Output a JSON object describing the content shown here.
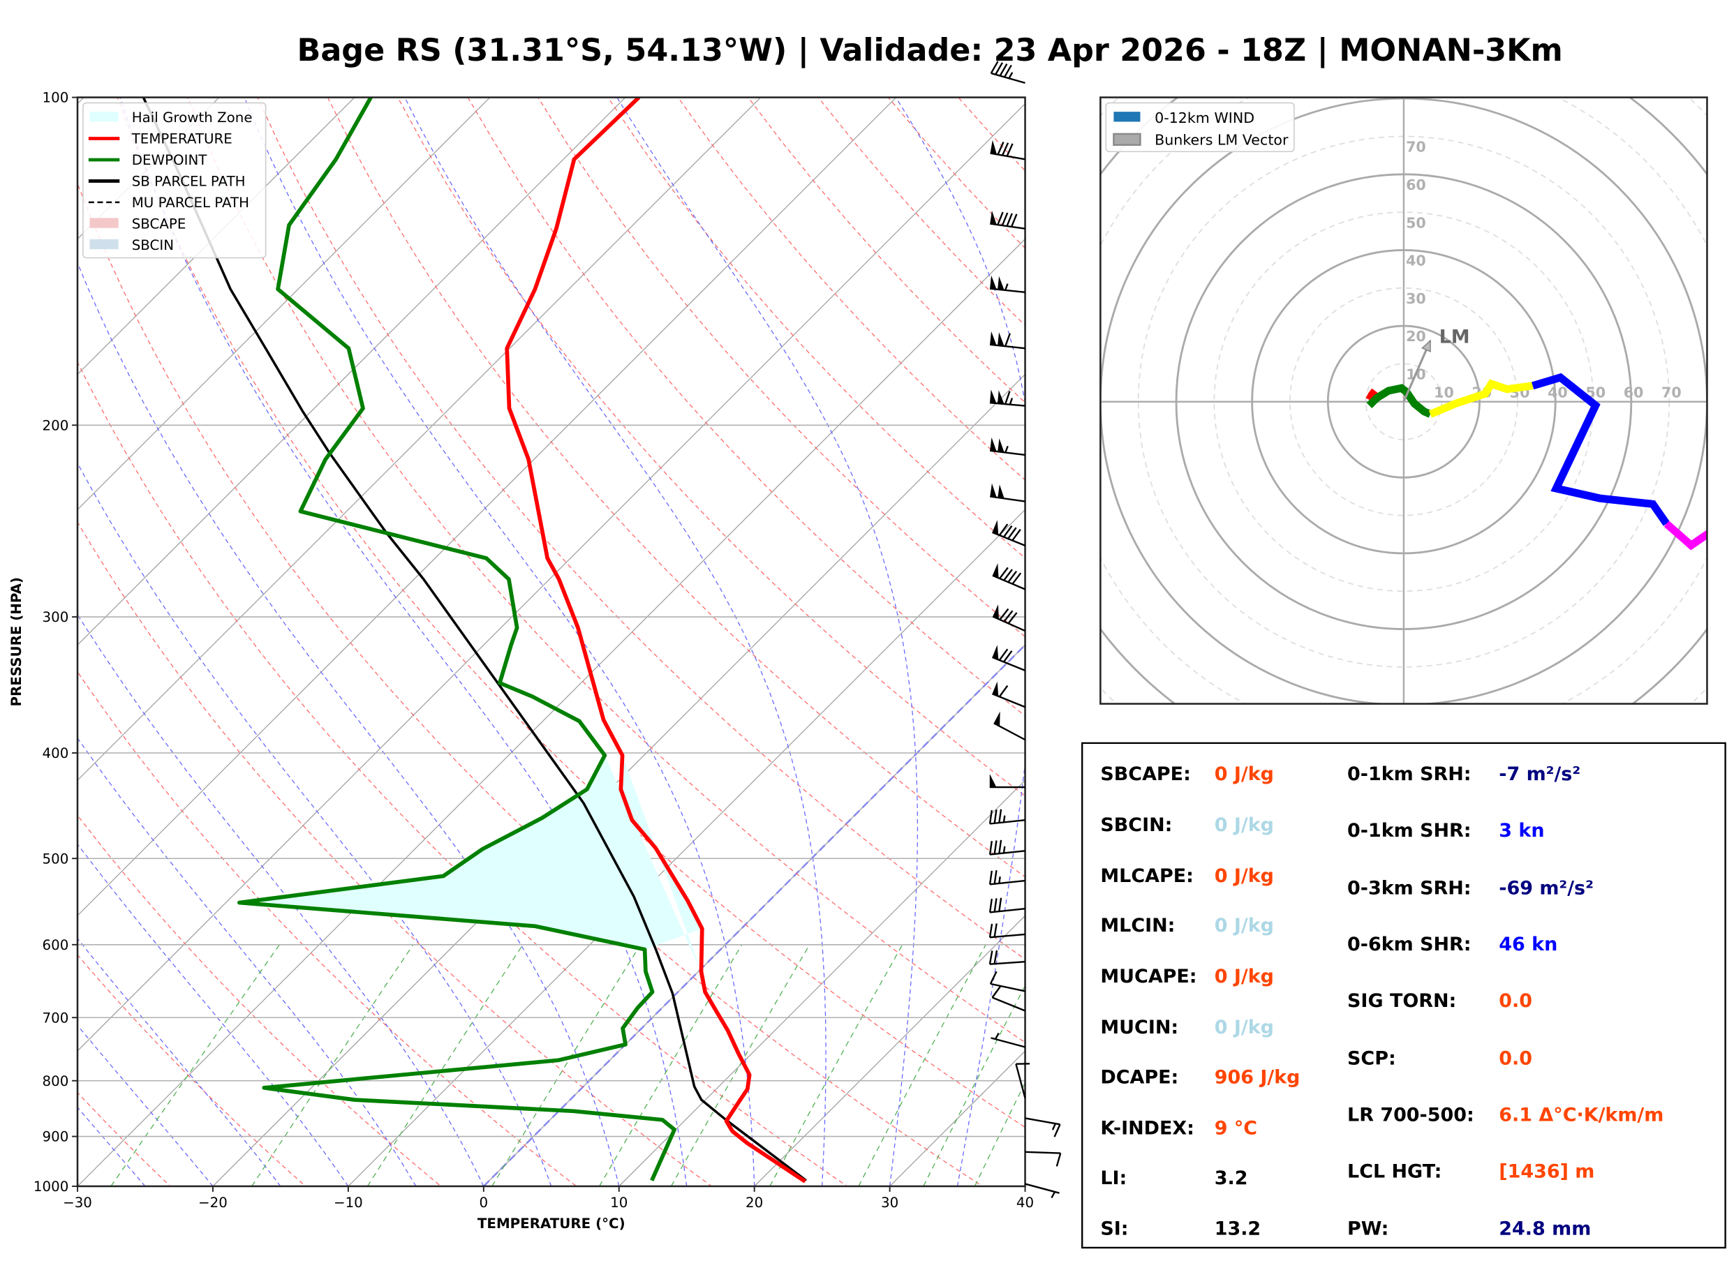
{
  "title": "Bage RS (31.31°S, 54.13°W) | Validade: 23 Apr 2026 - 18Z | MONAN-3Km",
  "colors": {
    "temperature": "#ff0000",
    "dewpoint": "#008000",
    "parcel": "#000000",
    "hail_zone": "#e0ffff",
    "dry_adiabat": "#ff6666",
    "moist_adiabat": "#6666ff",
    "mixing_ratio": "#4caf50",
    "isotherm": "#a0a0a0",
    "orange": "#ff4500",
    "lightblue": "#add8e6",
    "navy": "#000080",
    "blue": "#0000ff"
  },
  "chart_data": [
    {
      "type": "line",
      "name": "skew-t",
      "xlabel": "TEMPERATURE (°C)",
      "ylabel": "PRESSURE (HPA)",
      "xlim": [
        -30,
        40
      ],
      "ylim": [
        1000,
        100
      ],
      "yscale": "log",
      "xticks": [
        "−30",
        "−20",
        "−10",
        "0",
        "10",
        "20",
        "30",
        "40"
      ],
      "xtick_values": [
        -30,
        -20,
        -10,
        0,
        10,
        20,
        30,
        40
      ],
      "yticks": [
        "100",
        "200",
        "300",
        "400",
        "500",
        "600",
        "700",
        "800",
        "900",
        "1000"
      ],
      "ytick_values": [
        100,
        200,
        300,
        400,
        500,
        600,
        700,
        800,
        900,
        1000
      ],
      "legend": {
        "position": "top-left",
        "entries": [
          {
            "label": "Hail Growth Zone",
            "kind": "patch",
            "color": "#e0ffff"
          },
          {
            "label": "TEMPERATURE",
            "kind": "line",
            "color": "#ff0000"
          },
          {
            "label": "DEWPOINT",
            "kind": "line",
            "color": "#008000"
          },
          {
            "label": "SB PARCEL PATH",
            "kind": "line",
            "color": "#000000"
          },
          {
            "label": "MU PARCEL PATH",
            "kind": "dashed",
            "color": "#000000"
          },
          {
            "label": "SBCAPE",
            "kind": "patch",
            "color": "#f4c7c9"
          },
          {
            "label": "SBCIN",
            "kind": "patch",
            "color": "#cfe0ec"
          }
        ]
      },
      "series": [
        {
          "name": "TEMPERATURE",
          "points": [
            [
              990,
              23.4
            ],
            [
              913,
              16.3
            ],
            [
              890,
              14.3
            ],
            [
              871,
              13.1
            ],
            [
              835,
              12.6
            ],
            [
              814,
              12.3
            ],
            [
              790,
              11.4
            ],
            [
              755,
              9.0
            ],
            [
              719,
              6.5
            ],
            [
              690,
              4.2
            ],
            [
              663,
              2.0
            ],
            [
              635,
              0.2
            ],
            [
              580,
              -2.9
            ],
            [
              547,
              -6.0
            ],
            [
              489,
              -12.3
            ],
            [
              461,
              -16.1
            ],
            [
              432,
              -19.2
            ],
            [
              402,
              -21.6
            ],
            [
              373,
              -25.6
            ],
            [
              307,
              -34.3
            ],
            [
              277,
              -39.3
            ],
            [
              265,
              -41.7
            ],
            [
              215,
              -50.4
            ],
            [
              193,
              -55.6
            ],
            [
              170,
              -60.2
            ],
            [
              150,
              -62.5
            ],
            [
              132,
              -65.4
            ],
            [
              114,
              -69.2
            ],
            [
              100,
              -69.0
            ]
          ]
        },
        {
          "name": "DEWPOINT",
          "points": [
            [
              988,
              12.0
            ],
            [
              887,
              9.9
            ],
            [
              869,
              8.3
            ],
            [
              853,
              1.1
            ],
            [
              833,
              -15.9
            ],
            [
              812,
              -23.5
            ],
            [
              766,
              -3.8
            ],
            [
              741,
              0.0
            ],
            [
              716,
              -1.4
            ],
            [
              686,
              -1.8
            ],
            [
              663,
              -1.9
            ],
            [
              635,
              -3.9
            ],
            [
              606,
              -5.6
            ],
            [
              577,
              -15.4
            ],
            [
              549,
              -39.0
            ],
            [
              519,
              -25.9
            ],
            [
              490,
              -25.0
            ],
            [
              459,
              -22.9
            ],
            [
              432,
              -21.7
            ],
            [
              402,
              -22.9
            ],
            [
              374,
              -27.3
            ],
            [
              355,
              -32.6
            ],
            [
              345,
              -36.0
            ],
            [
              318,
              -38.0
            ],
            [
              307,
              -38.8
            ],
            [
              277,
              -43.0
            ],
            [
              265,
              -46.2
            ],
            [
              240,
              -63.4
            ],
            [
              215,
              -65.4
            ],
            [
              193,
              -66.4
            ],
            [
              170,
              -71.9
            ],
            [
              150,
              -81.5
            ],
            [
              131,
              -85.4
            ],
            [
              114,
              -86.8
            ],
            [
              100,
              -88.8
            ]
          ]
        },
        {
          "name": "SB PARCEL PATH",
          "points": [
            [
              988,
              23.4
            ],
            [
              869,
              13.0
            ],
            [
              833,
              9.7
            ],
            [
              810,
              8.2
            ],
            [
              665,
              -0.3
            ],
            [
              607,
              -4.7
            ],
            [
              542,
              -10.3
            ],
            [
              445,
              -20.9
            ],
            [
              277,
              -49.3
            ],
            [
              251,
              -55.5
            ],
            [
              212,
              -65.6
            ],
            [
              194,
              -70.7
            ],
            [
              171,
              -77.7
            ],
            [
              150,
              -85.0
            ],
            [
              118,
              -97.1
            ],
            [
              100,
              -105.6
            ]
          ]
        }
      ],
      "hail_growth_zone": {
        "left_edge_from": "DEWPOINT",
        "right_edge_from": "TEMPERATURE",
        "p_top": 402,
        "p_bottom": 606,
        "closing_points": [
          [
            606,
            -5.6
          ],
          [
            618,
            -1.2
          ],
          [
            635,
            0.2
          ]
        ]
      },
      "wind_barbs": [
        {
          "p": 97,
          "dir": 286,
          "spd": 45
        },
        {
          "p": 114,
          "dir": 280,
          "spd": 80
        },
        {
          "p": 132,
          "dir": 278,
          "spd": 90
        },
        {
          "p": 151,
          "dir": 276,
          "spd": 105
        },
        {
          "p": 170,
          "dir": 276,
          "spd": 110
        },
        {
          "p": 192,
          "dir": 275,
          "spd": 115
        },
        {
          "p": 213,
          "dir": 277,
          "spd": 105
        },
        {
          "p": 235,
          "dir": 278,
          "spd": 100
        },
        {
          "p": 258,
          "dir": 292,
          "spd": 90
        },
        {
          "p": 283,
          "dir": 293,
          "spd": 90
        },
        {
          "p": 309,
          "dir": 294,
          "spd": 80
        },
        {
          "p": 336,
          "dir": 292,
          "spd": 70
        },
        {
          "p": 363,
          "dir": 292,
          "spd": 60
        },
        {
          "p": 389,
          "dir": 298,
          "spd": 50
        },
        {
          "p": 430,
          "dir": 270,
          "spd": 50
        },
        {
          "p": 461,
          "dir": 264,
          "spd": 35
        },
        {
          "p": 492,
          "dir": 264,
          "spd": 35
        },
        {
          "p": 524,
          "dir": 264,
          "spd": 25
        },
        {
          "p": 556,
          "dir": 264,
          "spd": 30
        },
        {
          "p": 587,
          "dir": 265,
          "spd": 20
        },
        {
          "p": 622,
          "dir": 266,
          "spd": 20
        },
        {
          "p": 662,
          "dir": 282,
          "spd": 10
        },
        {
          "p": 690,
          "dir": 292,
          "spd": 10
        },
        {
          "p": 745,
          "dir": 285,
          "spd": 5
        },
        {
          "p": 830,
          "dir": 345,
          "spd": 10
        },
        {
          "p": 866,
          "dir": 100,
          "spd": 15
        },
        {
          "p": 930,
          "dir": 92,
          "spd": 10
        },
        {
          "p": 995,
          "dir": 105,
          "spd": 5
        }
      ]
    },
    {
      "type": "line",
      "name": "hodograph",
      "units": "kt",
      "range": [
        -80,
        80
      ],
      "ring_labels": [
        "10",
        "20",
        "30",
        "40",
        "50",
        "60",
        "70"
      ],
      "ring_values": [
        10,
        20,
        30,
        40,
        50,
        60,
        70
      ],
      "legend": {
        "position": "top-left",
        "entries": [
          {
            "label": "0-12km WIND",
            "color": "#1f77b4"
          },
          {
            "label": "Bunkers LM Vector",
            "color": "#aaaaaa"
          }
        ]
      },
      "segments": [
        {
          "color": "#ff0000",
          "uv": [
            [
              -9.1,
              0.5
            ],
            [
              -8.4,
              1.8
            ],
            [
              -7.6,
              2.9
            ]
          ]
        },
        {
          "color": "#008000",
          "uv": [
            [
              -9.1,
              -1.0
            ],
            [
              -7.1,
              1.0
            ],
            [
              -4.0,
              2.9
            ],
            [
              -0.6,
              3.6
            ],
            [
              0.7,
              2.6
            ],
            [
              2.8,
              -0.5
            ],
            [
              5.4,
              -2.6
            ],
            [
              7.0,
              -3.3
            ]
          ]
        },
        {
          "color": "#ffff00",
          "uv": [
            [
              7.0,
              -3.3
            ],
            [
              13.7,
              -0.5
            ],
            [
              21.5,
              2.1
            ],
            [
              23.1,
              4.7
            ],
            [
              27.2,
              3.3
            ],
            [
              34.0,
              4.2
            ]
          ]
        },
        {
          "color": "#0000ff",
          "uv": [
            [
              34.0,
              4.2
            ],
            [
              41.3,
              6.4
            ],
            [
              50.6,
              -1.0
            ],
            [
              40.2,
              -22.9
            ],
            [
              51.7,
              -25.5
            ],
            [
              65.7,
              -27.0
            ],
            [
              69.3,
              -32.2
            ]
          ]
        },
        {
          "color": "#ff00ff",
          "uv": [
            [
              69.3,
              -32.2
            ],
            [
              75.8,
              -37.9
            ],
            [
              80.3,
              -34.8
            ]
          ]
        }
      ],
      "bunkers_lm": {
        "label": "LM",
        "u": 7.0,
        "v": 16.1
      }
    }
  ],
  "stats": {
    "left": [
      {
        "label": "SBCAPE:",
        "value": "0 J/kg",
        "color": "#ff4500"
      },
      {
        "label": "SBCIN:",
        "value": "0 J/kg",
        "color": "#add8e6"
      },
      {
        "label": "MLCAPE:",
        "value": "0 J/kg",
        "color": "#ff4500"
      },
      {
        "label": "MLCIN:",
        "value": "0 J/kg",
        "color": "#add8e6"
      },
      {
        "label": "MUCAPE:",
        "value": "0 J/kg",
        "color": "#ff4500"
      },
      {
        "label": "MUCIN:",
        "value": "0 J/kg",
        "color": "#add8e6"
      },
      {
        "label": "DCAPE:",
        "value": "906 J/kg",
        "color": "#ff4500"
      },
      {
        "label": "K-INDEX:",
        "value": "9 °C",
        "color": "#ff4500"
      },
      {
        "label": "LI:",
        "value": "3.2",
        "color": "#000000"
      },
      {
        "label": "SI:",
        "value": "13.2",
        "color": "#000000"
      }
    ],
    "right": [
      {
        "label": "0-1km SRH:",
        "value": "-7 m²/s²",
        "color": "#000080"
      },
      {
        "label": "0-1km SHR:",
        "value": "3 kn",
        "color": "#0000ff"
      },
      {
        "label": "0-3km SRH:",
        "value": "-69 m²/s²",
        "color": "#000080"
      },
      {
        "label": "0-6km SHR:",
        "value": "46 kn",
        "color": "#0000ff"
      },
      {
        "label": "SIG TORN:",
        "value": "0.0",
        "color": "#ff4500"
      },
      {
        "label": "SCP:",
        "value": "0.0",
        "color": "#ff4500"
      },
      {
        "label": "LR 700-500:",
        "value": "6.1 Δ°C·K/km/m",
        "color": "#ff4500"
      },
      {
        "label": "LCL HGT:",
        "value": "[1436] m",
        "color": "#ff4500"
      },
      {
        "label": "PW:",
        "value": "24.8 mm",
        "color": "#000080"
      }
    ]
  }
}
